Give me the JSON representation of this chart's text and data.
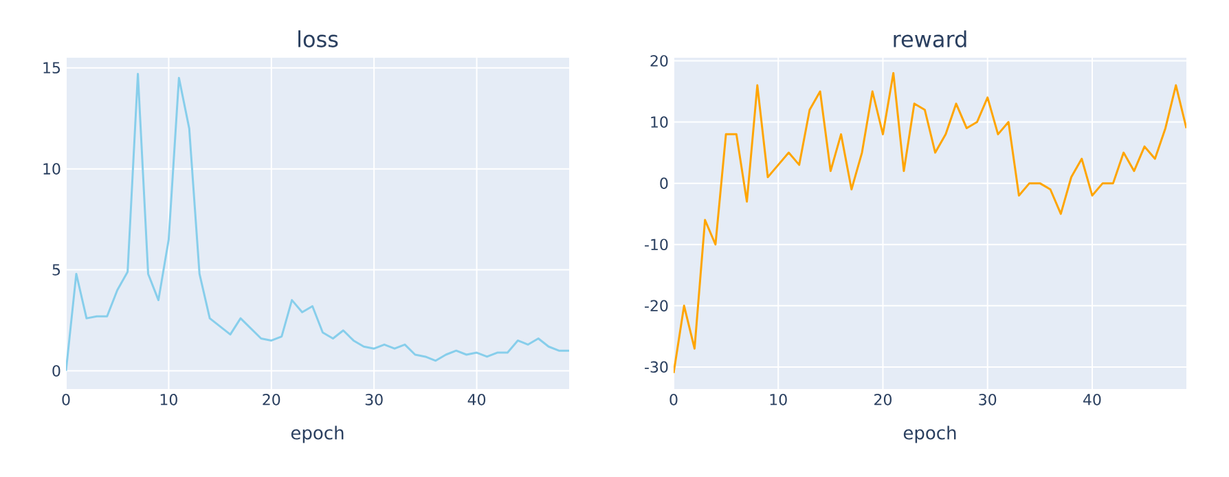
{
  "chart_data": [
    {
      "type": "line",
      "title": "loss",
      "xlabel": "epoch",
      "x": [
        0,
        1,
        2,
        3,
        4,
        5,
        6,
        7,
        8,
        9,
        10,
        11,
        12,
        13,
        14,
        15,
        16,
        17,
        18,
        19,
        20,
        21,
        22,
        23,
        24,
        25,
        26,
        27,
        28,
        29,
        30,
        31,
        32,
        33,
        34,
        35,
        36,
        37,
        38,
        39,
        40,
        41,
        42,
        43,
        44,
        45,
        46,
        47,
        48,
        49
      ],
      "series": [
        {
          "color": "#87ceeb",
          "values": [
            0,
            4.8,
            2.6,
            2.7,
            2.7,
            4.0,
            4.9,
            14.7,
            4.8,
            3.5,
            6.5,
            14.5,
            12.0,
            4.8,
            2.6,
            2.2,
            1.8,
            2.6,
            2.1,
            1.6,
            1.5,
            1.7,
            3.5,
            2.9,
            3.2,
            1.9,
            1.6,
            2.0,
            1.5,
            1.2,
            1.1,
            1.3,
            1.1,
            1.3,
            0.8,
            0.7,
            0.5,
            0.8,
            1.0,
            0.8,
            0.9,
            0.7,
            0.9,
            0.9,
            1.5,
            1.3,
            1.6,
            1.2,
            1.0,
            1.0
          ]
        }
      ],
      "xlim": [
        0,
        49
      ],
      "ylim": [
        -0.9,
        15.5
      ],
      "xticks": [
        0,
        10,
        20,
        30,
        40
      ],
      "yticks": [
        0,
        5,
        10,
        15
      ],
      "grid": true,
      "line_style": "solid",
      "marker": "none"
    },
    {
      "type": "line",
      "title": "reward",
      "xlabel": "epoch",
      "x": [
        0,
        1,
        2,
        3,
        4,
        5,
        6,
        7,
        8,
        9,
        10,
        11,
        12,
        13,
        14,
        15,
        16,
        17,
        18,
        19,
        20,
        21,
        22,
        23,
        24,
        25,
        26,
        27,
        28,
        29,
        30,
        31,
        32,
        33,
        34,
        35,
        36,
        37,
        38,
        39,
        40,
        41,
        42,
        43,
        44,
        45,
        46,
        47,
        48,
        49
      ],
      "series": [
        {
          "color": "#ffa500",
          "values": [
            -31,
            -20,
            -27,
            -6,
            -10,
            8,
            8,
            -3,
            16,
            1,
            3,
            5,
            3,
            12,
            15,
            2,
            8,
            -1,
            5,
            15,
            8,
            18,
            2,
            13,
            12,
            5,
            8,
            13,
            9,
            10,
            14,
            8,
            10,
            -2,
            0,
            0,
            -1,
            -5,
            1,
            4,
            -2,
            0,
            0,
            5,
            2,
            6,
            4,
            9,
            16,
            9
          ]
        }
      ],
      "xlim": [
        0,
        49
      ],
      "ylim": [
        -33.6,
        20.5
      ],
      "xticks": [
        0,
        10,
        20,
        30,
        40
      ],
      "yticks": [
        -30,
        -20,
        -10,
        0,
        10,
        20
      ],
      "grid": true,
      "line_style": "solid",
      "marker": "none"
    }
  ]
}
